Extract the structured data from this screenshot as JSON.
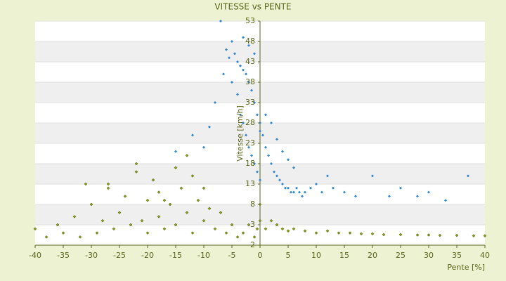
{
  "chart_data": {
    "type": "scatter",
    "title": "VITESSE vs PENTE",
    "x_label": "Pente [%]",
    "y_label": "Vitesse [km/h]",
    "xlim": [
      -40,
      40
    ],
    "xticks": [
      -40,
      -35,
      -30,
      -25,
      -20,
      -15,
      -10,
      -5,
      0,
      5,
      10,
      15,
      20,
      25,
      30,
      35,
      40
    ],
    "ylim": [
      -2,
      53
    ],
    "yticks": [
      -2,
      3,
      8,
      13,
      18,
      23,
      28,
      33,
      38,
      43,
      48,
      53
    ],
    "grid": true,
    "series": [
      {
        "color": "#2f86d8",
        "x": [
          -7,
          -6.5,
          -6,
          -5.5,
          -5,
          -5,
          -4.5,
          -4,
          -4,
          -3.5,
          -3.5,
          -3,
          -3,
          -2.5,
          -2.5,
          -2,
          -2,
          -1.5,
          -1.5,
          -1,
          -1,
          -0.5,
          -0.5,
          0,
          0,
          0.5,
          1,
          1.5,
          2,
          2.5,
          3,
          3.5,
          4,
          4.5,
          5,
          5.5,
          6,
          6.5,
          7,
          7.5,
          8,
          9,
          10,
          11,
          12,
          13,
          15,
          17,
          20,
          23,
          25,
          28,
          30,
          33,
          37,
          -9,
          -8,
          -10,
          -12,
          -15,
          -3,
          -2,
          -1,
          0,
          1,
          2,
          3,
          4,
          5,
          6
        ],
        "values": [
          53,
          40,
          46,
          44,
          48,
          38,
          45,
          43,
          35,
          42,
          30,
          41,
          28,
          40,
          25,
          38,
          22,
          36,
          20,
          33,
          18,
          30,
          16,
          28,
          14,
          25,
          22,
          20,
          18,
          16,
          15,
          14,
          13,
          12,
          12,
          11,
          11,
          12,
          11,
          10,
          11,
          12,
          13,
          11,
          15,
          12,
          11,
          10,
          15,
          10,
          12,
          10,
          11,
          9,
          15,
          27,
          33,
          22,
          25,
          21,
          49,
          47,
          45,
          26,
          30,
          28,
          24,
          21,
          19,
          17
        ]
      },
      {
        "color": "#8a9a12",
        "x": [
          -40,
          -38,
          -36,
          -35,
          -33,
          -32,
          -30,
          -29,
          -28,
          -27,
          -26,
          -25,
          -24,
          -23,
          -22,
          -21,
          -20,
          -20,
          -19,
          -18,
          -18,
          -17,
          -16,
          -15,
          -15,
          -14,
          -13,
          -12,
          -12,
          -11,
          -10,
          -10,
          -9,
          -8,
          -7,
          -6,
          -5,
          -4,
          -3,
          -2,
          -1,
          -0.5,
          0,
          0,
          1,
          2,
          3,
          4,
          5,
          6,
          8,
          10,
          12,
          14,
          16,
          18,
          20,
          22,
          25,
          28,
          30,
          32,
          35,
          38,
          40,
          -31,
          -27,
          -22,
          -17,
          -13
        ],
        "values": [
          2,
          0,
          3,
          1,
          5,
          0,
          8,
          1,
          4,
          13,
          2,
          6,
          10,
          3,
          16,
          4,
          9,
          1,
          14,
          5,
          11,
          2,
          8,
          17,
          3,
          12,
          6,
          15,
          1,
          9,
          4,
          12,
          7,
          2,
          6,
          1,
          3,
          0,
          1,
          3,
          0,
          2,
          4,
          8,
          2,
          4,
          3,
          2,
          1.5,
          2,
          1.5,
          1,
          1.5,
          1,
          1,
          0.8,
          0.8,
          0.6,
          0.6,
          0.5,
          0.5,
          0.4,
          0.4,
          0.3,
          0.3,
          13,
          12,
          18,
          9,
          20
        ]
      }
    ]
  }
}
